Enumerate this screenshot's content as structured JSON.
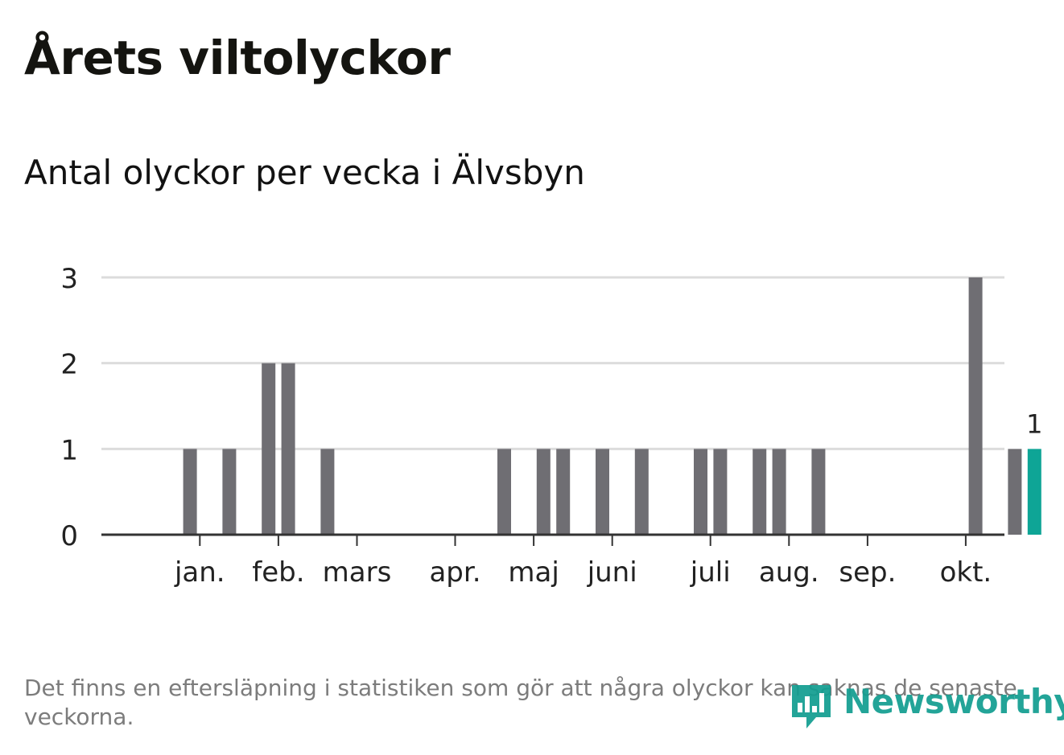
{
  "title": "Årets viltolyckor",
  "subtitle": "Antal olyckor per vecka i Älvsbyn",
  "footnote": "Det finns en eftersläpning i statistiken som gör att några olyckor kan saknas de senaste veckorna.",
  "brand": {
    "name": "Newsworthy",
    "color": "#139e91"
  },
  "colors": {
    "bar": "#6f6e73",
    "highlight": "#0ea596",
    "grid": "#dcdcdc",
    "axis": "#333333"
  },
  "chart_data": {
    "type": "bar",
    "title": "Antal olyckor per vecka i Älvsbyn",
    "xlabel": "",
    "ylabel": "",
    "ylim": [
      0,
      3
    ],
    "yticks": [
      0,
      1,
      2,
      3
    ],
    "grid": true,
    "week_start": 1,
    "weeks": [
      1,
      2,
      3,
      4,
      5,
      6,
      7,
      8,
      9,
      10,
      11,
      12,
      13,
      14,
      15,
      16,
      17,
      18,
      19,
      20,
      21,
      22,
      23,
      24,
      25,
      26,
      27,
      28,
      29,
      30,
      31,
      32,
      33,
      34,
      35,
      36,
      37,
      38,
      39,
      40,
      41,
      42,
      43,
      44,
      45,
      46
    ],
    "values": [
      0,
      0,
      1,
      0,
      1,
      0,
      2,
      2,
      0,
      1,
      0,
      0,
      0,
      0,
      0,
      0,
      0,
      0,
      1,
      0,
      1,
      1,
      0,
      1,
      0,
      1,
      0,
      0,
      1,
      1,
      0,
      1,
      1,
      0,
      1,
      0,
      0,
      0,
      0,
      0,
      0,
      0,
      3,
      0,
      1,
      1
    ],
    "highlight_last": true,
    "last_value_label": "1",
    "month_ticks": [
      {
        "label": "jan.",
        "week": 3.5
      },
      {
        "label": "feb.",
        "week": 7.5
      },
      {
        "label": "mars",
        "week": 11.5
      },
      {
        "label": "apr.",
        "week": 16.5
      },
      {
        "label": "maj",
        "week": 20.5
      },
      {
        "label": "juni",
        "week": 24.5
      },
      {
        "label": "juli",
        "week": 29.5
      },
      {
        "label": "aug.",
        "week": 33.5
      },
      {
        "label": "sep.",
        "week": 37.5
      },
      {
        "label": "okt.",
        "week": 42.5
      }
    ]
  }
}
